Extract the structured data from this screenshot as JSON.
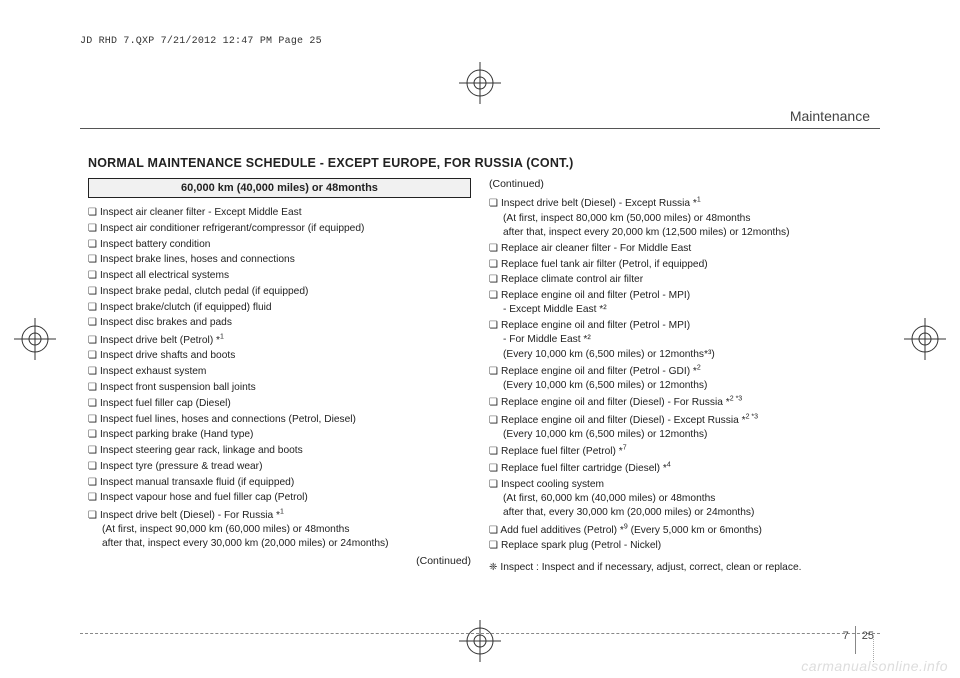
{
  "header_line": "JD RHD 7.QXP  7/21/2012  12:47 PM  Page 25",
  "section_title": "Maintenance",
  "schedule_title": "NORMAL MAINTENANCE SCHEDULE - EXCEPT EUROPE, FOR RUSSIA (CONT.)",
  "interval_label": "60,000 km (40,000 miles) or 48months",
  "left_items": [
    {
      "text": "Inspect air cleaner filter - Except Middle East"
    },
    {
      "text": "Inspect air conditioner refrigerant/compressor (if equipped)"
    },
    {
      "text": "Inspect battery condition"
    },
    {
      "text": "Inspect brake lines, hoses and connections"
    },
    {
      "text": "Inspect all electrical systems"
    },
    {
      "text": "Inspect brake pedal, clutch pedal (if equipped)"
    },
    {
      "text": "Inspect brake/clutch (if equipped) fluid"
    },
    {
      "text": "Inspect disc brakes and pads"
    },
    {
      "text": "Inspect drive belt (Petrol) *",
      "sup": "1"
    },
    {
      "text": "Inspect drive shafts and boots"
    },
    {
      "text": "Inspect exhaust system"
    },
    {
      "text": "Inspect front suspension ball joints"
    },
    {
      "text": "Inspect fuel filler cap (Diesel)"
    },
    {
      "text": "Inspect fuel lines, hoses and connections (Petrol, Diesel)"
    },
    {
      "text": "Inspect parking brake (Hand type)"
    },
    {
      "text": "Inspect steering gear rack, linkage and boots"
    },
    {
      "text": "Inspect tyre (pressure & tread wear)"
    },
    {
      "text": "Inspect manual transaxle fluid (if equipped)"
    },
    {
      "text": "Inspect vapour hose and fuel filler cap (Petrol)"
    },
    {
      "text": "Inspect drive belt (Diesel) - For Russia *",
      "sup": "1",
      "sublines": [
        "(At first, inspect 90,000 km (60,000 miles) or 48months",
        "after that, inspect every 30,000 km (20,000 miles) or 24months)"
      ]
    }
  ],
  "left_continued": "(Continued)",
  "right_continued_top": "(Continued)",
  "right_items": [
    {
      "text": "Inspect drive belt (Diesel) - Except Russia *",
      "sup": "1",
      "sublines": [
        "(At first, inspect 80,000 km (50,000 miles) or 48months",
        "after that, inspect every 20,000 km (12,500 miles) or 12months)"
      ]
    },
    {
      "text": "Replace air cleaner filter - For Middle East"
    },
    {
      "text": "Replace fuel tank air filter (Petrol, if equipped)"
    },
    {
      "text": "Replace climate control air filter"
    },
    {
      "text": "Replace engine oil and filter (Petrol - MPI)",
      "sublines": [
        "- Except Middle East *²"
      ]
    },
    {
      "text": "Replace engine oil and filter (Petrol - MPI)",
      "sublines": [
        "- For Middle East *²",
        "(Every 10,000 km (6,500 miles) or 12months*³)"
      ]
    },
    {
      "text": "Replace engine oil and filter (Petrol - GDI) *",
      "sup": "2",
      "sublines": [
        "(Every 10,000 km (6,500 miles) or 12months)"
      ]
    },
    {
      "text": "Replace engine oil and filter (Diesel) - For Russia *",
      "sup": "2 *3"
    },
    {
      "text": "Replace engine oil and filter (Diesel) - Except Russia *",
      "sup": "2 *3",
      "sublines": [
        "(Every 10,000 km (6,500 miles) or 12months)"
      ]
    },
    {
      "text": "Replace fuel filter (Petrol) *",
      "sup": "7"
    },
    {
      "text": "Replace fuel filter cartridge (Diesel) *",
      "sup": "4"
    },
    {
      "text": "Inspect cooling system",
      "sublines": [
        "(At first, 60,000 km (40,000 miles) or 48months",
        "after that, every 30,000 km (20,000 miles) or 24months)"
      ]
    },
    {
      "text": "Add fuel additives (Petrol) *",
      "sup": "9",
      "trail": " (Every 5,000 km or 6months)"
    },
    {
      "text": "Replace spark plug (Petrol - Nickel)"
    }
  ],
  "footnote_lead": "❈ Inspect :",
  "footnote_body": "Inspect and if necessary, adjust, correct, clean or replace.",
  "page_section": "7",
  "page_number": "25",
  "watermark": "carmanualsonline.info"
}
